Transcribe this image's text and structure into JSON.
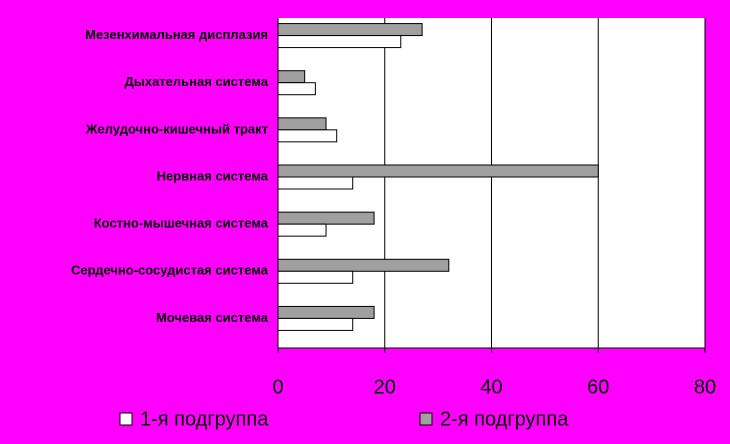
{
  "chart_data": {
    "type": "bar",
    "orientation": "horizontal",
    "categories": [
      "Мезенхимальная дисплазия",
      "Дыхательная система",
      "Желудочно-кишечный тракт",
      "Нервная система",
      "Костно-мышечная система",
      "Сердечно-сосудистая система",
      "Мочевая система"
    ],
    "series": [
      {
        "name": "1-я подгруппа",
        "color": "#ffffff",
        "values": [
          23,
          7,
          11,
          14,
          9,
          14,
          14
        ]
      },
      {
        "name": "2-я подгруппа",
        "color": "#a0a0a0",
        "values": [
          27,
          5,
          9,
          60,
          18,
          32,
          18
        ]
      }
    ],
    "xlim": [
      0,
      80
    ],
    "xticks": [
      0,
      20,
      40,
      60,
      80
    ],
    "grid": true,
    "background": "#ff00ff"
  }
}
